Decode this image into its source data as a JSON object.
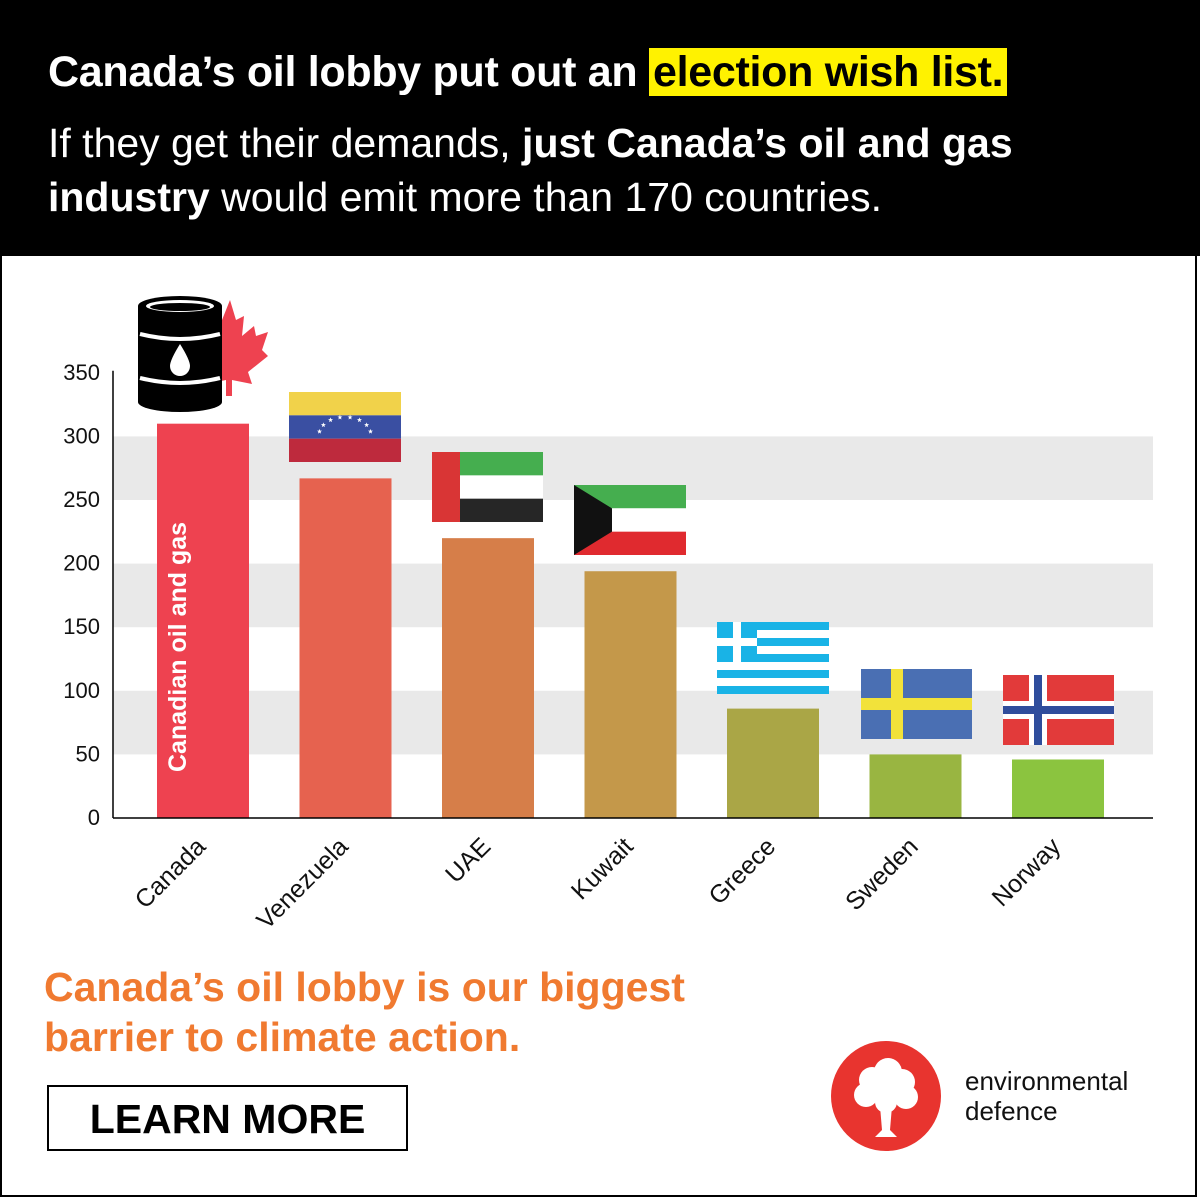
{
  "header": {
    "headline_pre": "Canada’s oil lobby put out an ",
    "headline_highlight": "election wish list.",
    "sub_1": "If they get their demands, ",
    "sub_bold_1": "just Canada’s oil and gas industry",
    "sub_2": " would emit more than 170 countries."
  },
  "chart_data": {
    "type": "bar",
    "categories": [
      "Canada",
      "Venezuela",
      "UAE",
      "Kuwait",
      "Greece",
      "Sweden",
      "Norway"
    ],
    "values": [
      310,
      267,
      220,
      194,
      86,
      50,
      46
    ],
    "bar_colors": [
      "#ee4250",
      "#e6624f",
      "#d67e49",
      "#c4984a",
      "#aaa646",
      "#99b541",
      "#8bc43f"
    ],
    "bar_label": "Canadian oil and gas",
    "yticks": [
      0,
      50,
      100,
      150,
      200,
      250,
      300,
      350
    ],
    "ylim": [
      0,
      350
    ],
    "grid": "alternating-bands",
    "flags": [
      "oil-barrel-maple-leaf-icon",
      "venezuela-flag",
      "uae-flag",
      "kuwait-flag",
      "greece-flag",
      "sweden-flag",
      "norway-flag"
    ]
  },
  "footer": {
    "tagline_1": "Canada’s oil lobby is our biggest",
    "tagline_2": "barrier to climate action.",
    "cta": "LEARN MORE",
    "brand_1": "environmental",
    "brand_2": "defence",
    "brand_color": "#e8342f",
    "tagline_color": "#f07a30"
  }
}
